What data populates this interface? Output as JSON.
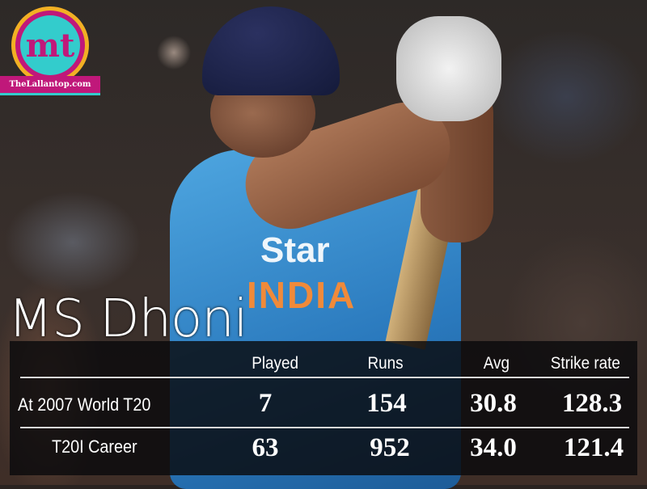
{
  "logo": {
    "monogram": "mt",
    "site": "TheLallantop.com",
    "colors": {
      "pink": "#c0187a",
      "teal": "#3cc",
      "gold": "#f2b024"
    }
  },
  "jersey_text": {
    "sponsor": "Star",
    "team": "INDIA"
  },
  "title": "MS Dhoni",
  "table": {
    "headers": [
      "Played",
      "Runs",
      "Avg",
      "Strike rate"
    ],
    "rows": [
      {
        "label": "At 2007 World T20",
        "values": [
          "7",
          "154",
          "30.8",
          "128.3"
        ]
      },
      {
        "label": "T20I Career",
        "values": [
          "63",
          "952",
          "34.0",
          "121.4"
        ]
      }
    ]
  }
}
